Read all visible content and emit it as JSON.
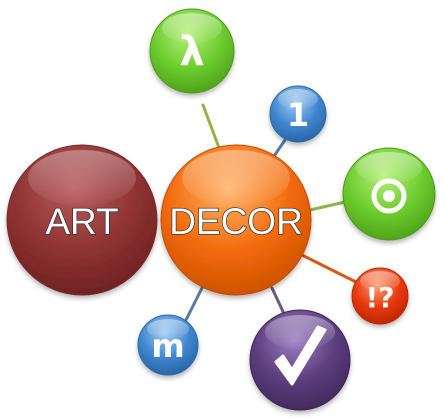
{
  "diagram": {
    "center_label": "DECOR",
    "side_label": "ART",
    "satellites": {
      "lambda": "λ",
      "one": "1",
      "target": "target-icon",
      "exclaim": "!?",
      "check": "check-icon",
      "m": "m"
    },
    "colors": {
      "decor": "#f26a0a",
      "art": "#8e3232",
      "green": "#6ccc2e",
      "blue": "#3f86d0",
      "red": "#e8380c",
      "purple": "#5b3d7e",
      "connector": "#8b6d3a"
    }
  }
}
